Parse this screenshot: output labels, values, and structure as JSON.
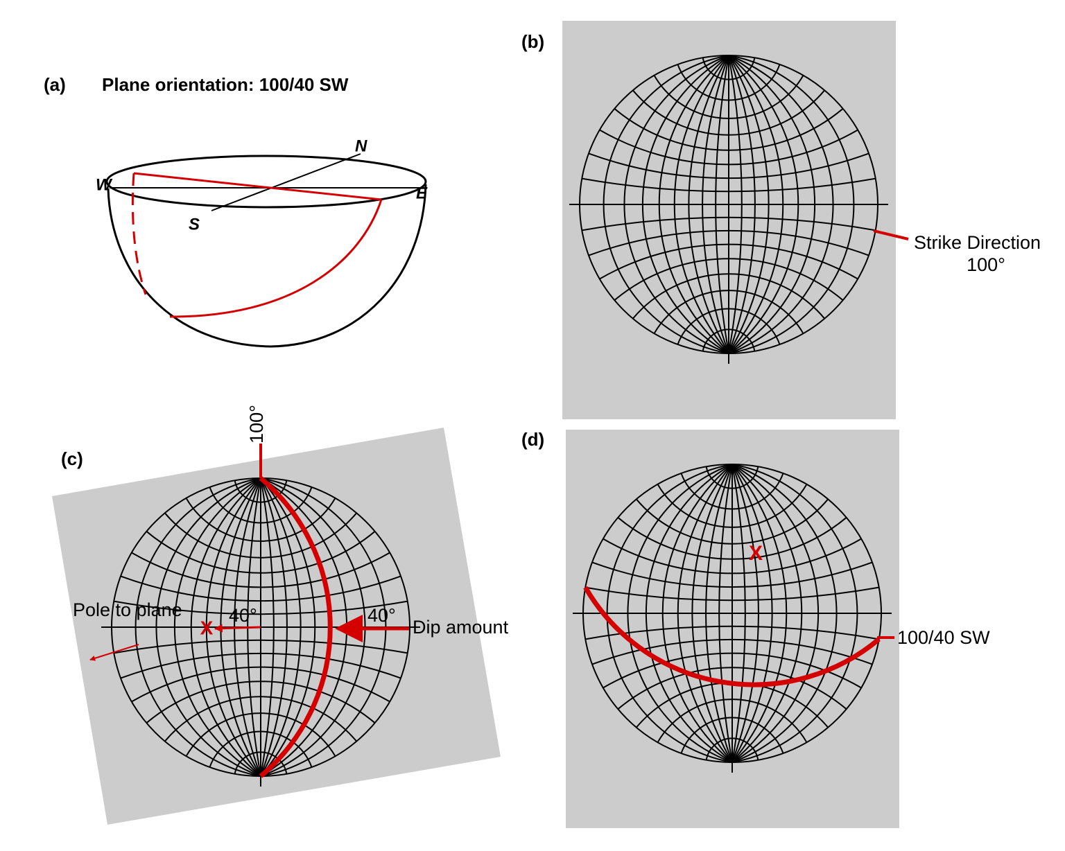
{
  "panels": {
    "a": {
      "label": "(a)",
      "title": "Plane orientation: 100/40 SW",
      "directions": {
        "w": "W",
        "n": "N",
        "e": "E",
        "s": "S"
      }
    },
    "b": {
      "label": "(b)",
      "strike_label": "Strike Direction",
      "strike_value": "100°"
    },
    "c": {
      "label": "(c)",
      "strike_value": "100°",
      "pole_label": "Pole to plane",
      "pole_angle": "40°",
      "dip_angle": "40°",
      "dip_label": "Dip amount",
      "pole_mark": "X"
    },
    "d": {
      "label": "(d)",
      "pole_mark": "X",
      "plane_label": "100/40 SW"
    }
  }
}
